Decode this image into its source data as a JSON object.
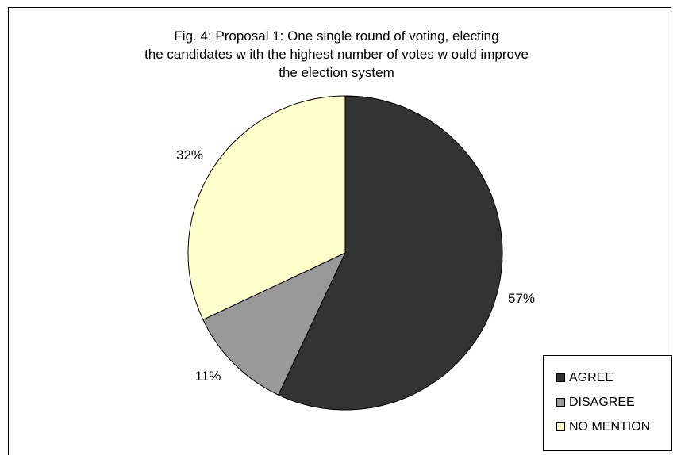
{
  "chart_data": {
    "type": "pie",
    "title_lines": [
      "Fig. 4: Proposal 1: One single round of voting, electing",
      "the candidates w ith the highest number of votes w ould improve",
      "the election system"
    ],
    "categories": [
      "AGREE",
      "DISAGREE",
      "NO MENTION"
    ],
    "values": [
      57,
      11,
      32
    ],
    "labels": [
      "57%",
      "11%",
      "32%"
    ],
    "colors": [
      "#333333",
      "#999999",
      "#ffffcc"
    ],
    "start_angle_deg": 0,
    "direction": "clockwise",
    "legend_position": "bottom-right"
  }
}
